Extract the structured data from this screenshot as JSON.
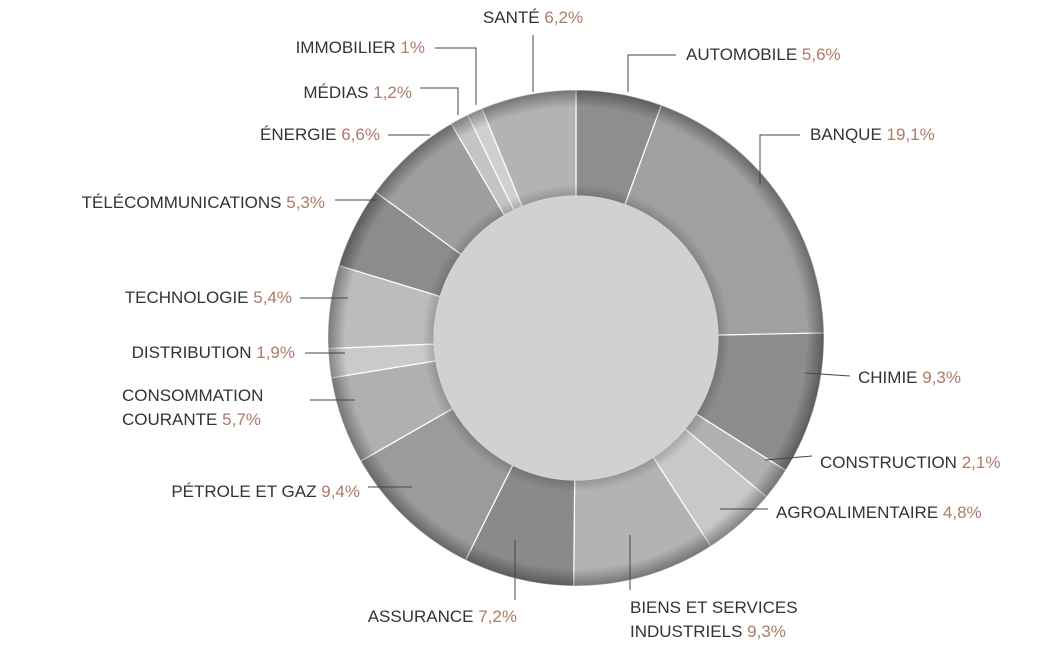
{
  "chart_data": {
    "type": "pie",
    "categories": [
      "AUTOMOBILE",
      "BANQUE",
      "CHIMIE",
      "CONSTRUCTION",
      "AGROALIMENTAIRE",
      "BIENS ET SERVICES INDUSTRIELS",
      "ASSURANCE",
      "PÉTROLE ET GAZ",
      "CONSOMMATION COURANTE",
      "DISTRIBUTION",
      "TECHNOLOGIE",
      "TÉLÉCOMMUNICATIONS",
      "ÉNERGIE",
      "MÉDIAS",
      "IMMOBILIER",
      "SANTÉ"
    ],
    "values": [
      5.6,
      19.1,
      9.3,
      2.1,
      4.8,
      9.3,
      7.2,
      9.4,
      5.7,
      1.9,
      5.4,
      5.3,
      6.6,
      1.2,
      1,
      6.2
    ],
    "value_labels": [
      "5,6%",
      "19,1%",
      "9,3%",
      "2,1%",
      "4,8%",
      "9,3%",
      "7,2%",
      "9,4%",
      "5,7%",
      "1,9%",
      "5,4%",
      "5,3%",
      "6,6%",
      "1,2%",
      "1%",
      "6,2%"
    ],
    "colors": [
      "#8e8e8e",
      "#a0a0a0",
      "#8c8c8c",
      "#b0b0b0",
      "#c8c8c8",
      "#b3b3b3",
      "#8a8a8a",
      "#9b9b9b",
      "#b0b0b0",
      "#cacaca",
      "#bcbcbc",
      "#8c8c8c",
      "#9e9e9e",
      "#c4c4c4",
      "#d0d0d0",
      "#b3b3b3"
    ],
    "donut": true
  }
}
